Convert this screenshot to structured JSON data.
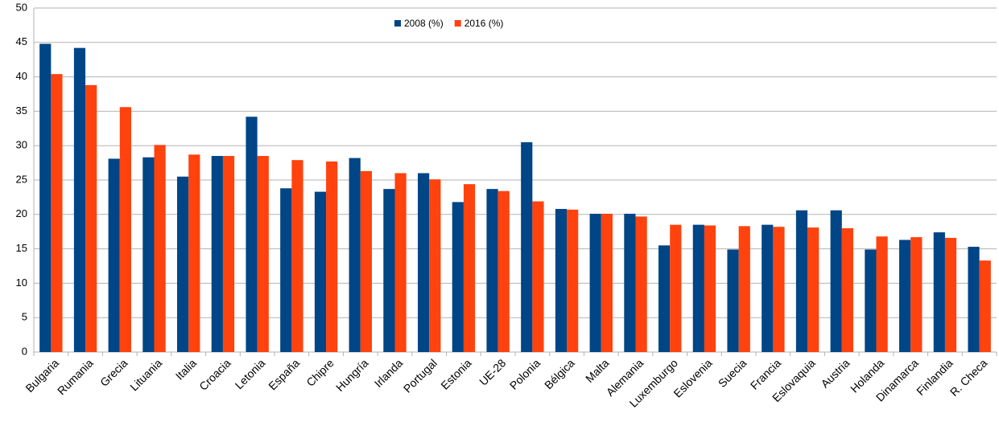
{
  "chart_data": {
    "type": "bar",
    "categories": [
      "Bulgaria",
      "Rumania",
      "Grecia",
      "Lituania",
      "Italia",
      "Croacia",
      "Letonia",
      "España",
      "Chipre",
      "Hungría",
      "Irlanda",
      "Portugal",
      "Estonia",
      "UE-28",
      "Polonia",
      "Bélgica",
      "Malta",
      "Alemania",
      "Luxemburgo",
      "Eslovenia",
      "Suecia",
      "Francia",
      "Eslovaquia",
      "Austria",
      "Holanda",
      "Dinamarca",
      "Finlandia",
      "R. Checa"
    ],
    "series": [
      {
        "name": "2008 (%)",
        "color": "#004586",
        "values": [
          44.8,
          44.2,
          28.1,
          28.3,
          25.5,
          28.5,
          34.2,
          23.8,
          23.3,
          28.2,
          23.7,
          26.0,
          21.8,
          23.7,
          30.5,
          20.8,
          20.1,
          20.1,
          15.5,
          18.5,
          14.9,
          18.5,
          20.6,
          20.6,
          14.9,
          16.3,
          17.4,
          15.3
        ]
      },
      {
        "name": "2016 (%)",
        "color": "#ff420e",
        "values": [
          40.4,
          38.8,
          35.6,
          30.1,
          28.7,
          28.5,
          28.5,
          27.9,
          27.7,
          26.3,
          26.0,
          25.1,
          24.4,
          23.4,
          21.9,
          20.7,
          20.1,
          19.7,
          18.5,
          18.4,
          18.3,
          18.2,
          18.1,
          18.0,
          16.8,
          16.7,
          16.6,
          13.3
        ]
      }
    ],
    "ylim": [
      0,
      50
    ],
    "yticks": [
      0,
      5,
      10,
      15,
      20,
      25,
      30,
      35,
      40,
      45,
      50
    ],
    "grid": true,
    "legend": "top"
  }
}
